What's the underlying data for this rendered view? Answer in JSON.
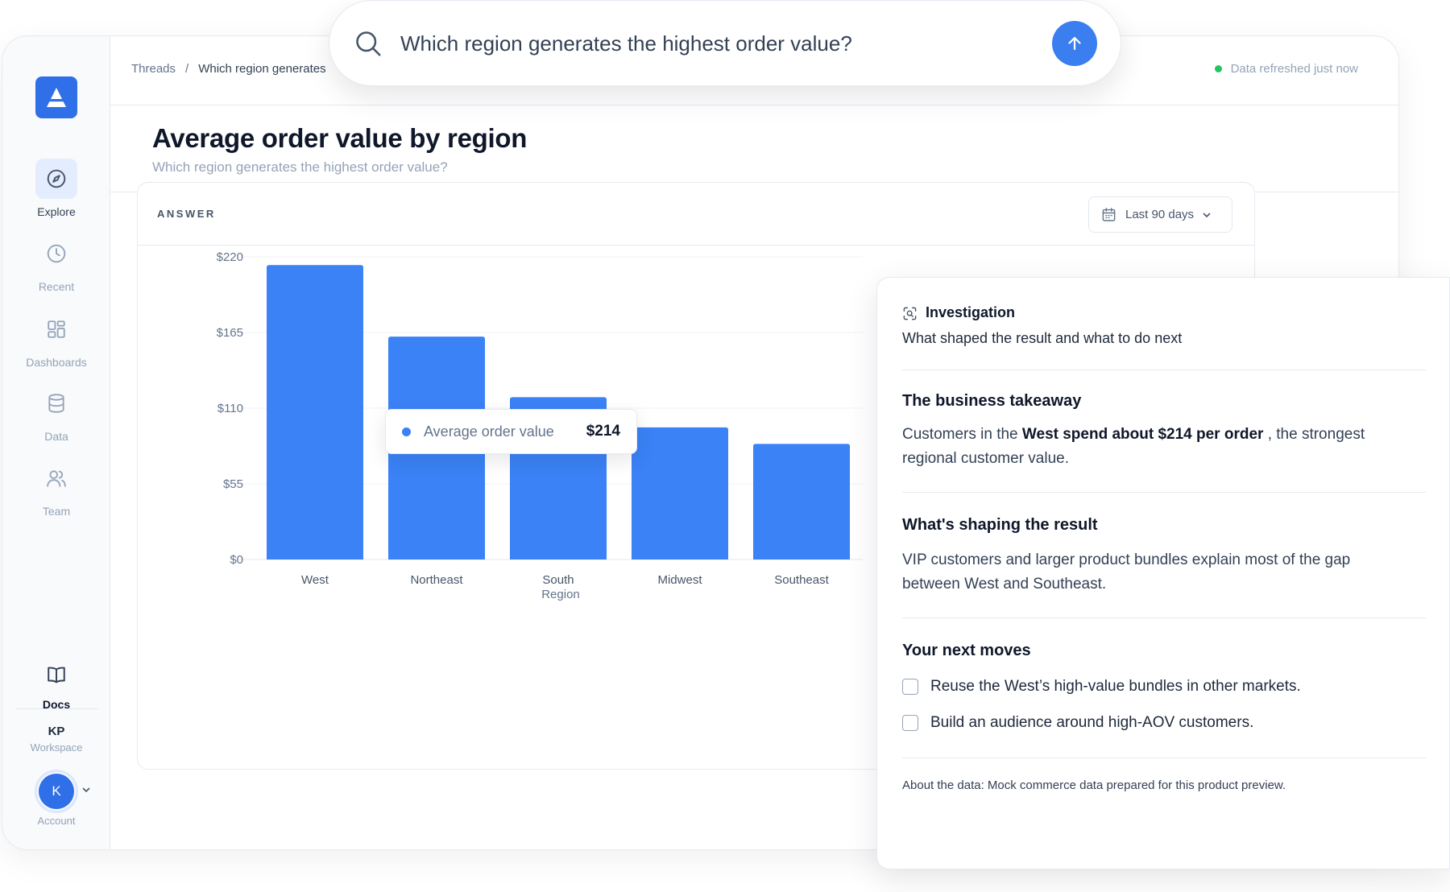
{
  "app": {
    "breadcrumb": {
      "root": "Threads",
      "separator": "/",
      "current": "Which region generates"
    },
    "refresh_status": "Data refreshed just now"
  },
  "sidebar": {
    "items": [
      {
        "label": "Explore",
        "icon": "compass-icon",
        "active": true
      },
      {
        "label": "Recent",
        "icon": "clock-icon",
        "active": false
      },
      {
        "label": "Dashboards",
        "icon": "grid-icon",
        "active": false
      },
      {
        "label": "Data",
        "icon": "database-icon",
        "active": false
      },
      {
        "label": "Team",
        "icon": "users-icon",
        "active": false
      }
    ],
    "docs_label": "Docs",
    "workspace": {
      "initials": "KP",
      "label": "Workspace"
    },
    "account": {
      "avatar_letter": "K",
      "label": "Account"
    }
  },
  "search": {
    "query": "Which region generates the highest order value?"
  },
  "page": {
    "title": "Average order value by region",
    "subtitle": "Which region generates the highest order value?"
  },
  "answer": {
    "label": "ANSWER",
    "date_range": "Last 90 days"
  },
  "chart_data": {
    "type": "bar",
    "categories": [
      "West",
      "Northeast",
      "South",
      "Midwest",
      "Southeast"
    ],
    "values": [
      214,
      162,
      118,
      96,
      84
    ],
    "xlabel": "Region",
    "ylabel": "",
    "ylim": [
      0,
      220
    ],
    "yticks": [
      0,
      55,
      110,
      165,
      220
    ],
    "ytick_labels": [
      "$0",
      "$55",
      "$110",
      "$165",
      "$220"
    ],
    "grid": true,
    "bar_color": "#3b82f6",
    "tooltip": {
      "label": "Average order value",
      "value": "$214"
    }
  },
  "investigation": {
    "title": "Investigation",
    "subtitle": "What shaped the result and what to do next",
    "takeaway": {
      "heading": "The business takeaway",
      "pre": "Customers in the ",
      "bold": "West spend about $214 per order",
      "post": " , the strongest regional customer value."
    },
    "shaping": {
      "heading": "What's shaping the result",
      "text": "VIP customers and larger product bundles explain most of the gap between West and Southeast."
    },
    "next_moves": {
      "heading": "Your next moves",
      "items": [
        "Reuse the West’s high-value bundles in other markets.",
        "Build an audience around high-AOV customers."
      ]
    },
    "about": "About the data: Mock commerce data prepared for this product preview."
  },
  "colors": {
    "accent": "#2f6fe8",
    "bar": "#3b82f6",
    "status_ok": "#22c55e"
  }
}
